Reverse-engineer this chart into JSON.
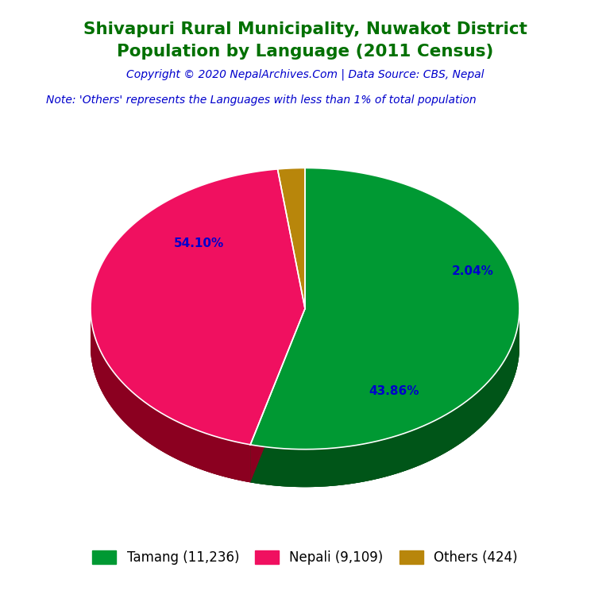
{
  "title_line1": "Shivapuri Rural Municipality, Nuwakot District",
  "title_line2": "Population by Language (2011 Census)",
  "copyright": "Copyright © 2020 NepalArchives.Com | Data Source: CBS, Nepal",
  "note": "Note: 'Others' represents the Languages with less than 1% of total population",
  "labels": [
    "Tamang",
    "Nepali",
    "Others"
  ],
  "values": [
    11236,
    9109,
    424
  ],
  "percentages": [
    54.1,
    43.86,
    2.04
  ],
  "colors": [
    "#009933",
    "#F01060",
    "#B8860B"
  ],
  "shadow_colors": [
    "#005518",
    "#8B0020",
    "#7A5800"
  ],
  "legend_labels": [
    "Tamang (11,236)",
    "Nepali (9,109)",
    "Others (424)"
  ],
  "title_color": "#007000",
  "copyright_color": "#0000CC",
  "note_color": "#0000CC",
  "pct_color": "#0000CC",
  "legend_text_color": "#000000",
  "background_color": "#FFFFFF",
  "startangle": 90
}
